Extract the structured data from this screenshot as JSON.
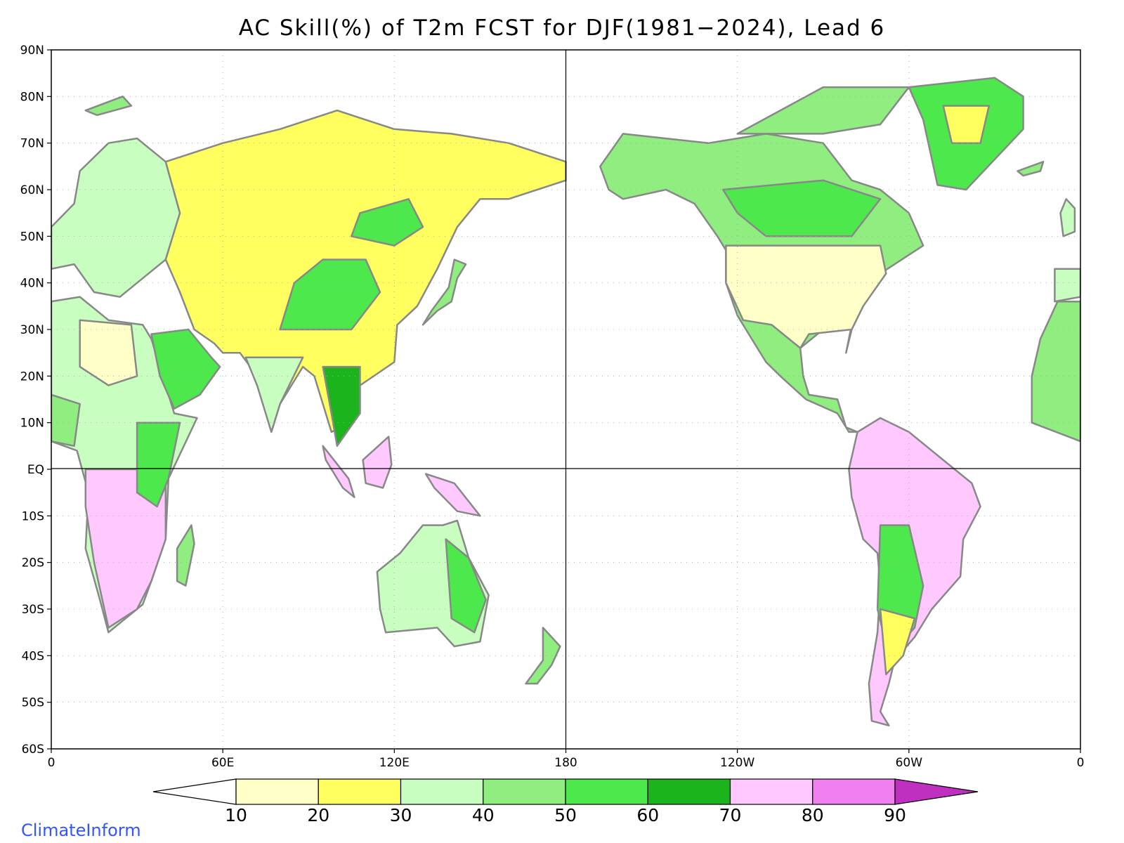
{
  "title": "AC Skill(%) of T2m FCST for DJF(1981−2024), Lead 6",
  "brand": "ClimateInform",
  "lat_labels": [
    "90N",
    "80N",
    "70N",
    "60N",
    "50N",
    "40N",
    "30N",
    "20N",
    "10N",
    "EQ",
    "10S",
    "20S",
    "30S",
    "40S",
    "50S",
    "60S"
  ],
  "lon_labels": [
    "0",
    "60E",
    "120E",
    "180",
    "120W",
    "60W",
    "0"
  ],
  "colorbar": {
    "ticks": [
      "10",
      "20",
      "30",
      "40",
      "50",
      "60",
      "70",
      "80",
      "90"
    ],
    "colors": [
      "#ffffff",
      "#ffffc8",
      "#ffff60",
      "#c8ffc0",
      "#90ee80",
      "#4ce84c",
      "#1cb41c",
      "#ffc8ff",
      "#f080f0",
      "#c030c0"
    ]
  },
  "map": {
    "lat_range": [
      -60,
      90
    ],
    "lon_range": [
      0,
      360
    ],
    "land_outline_color": "#888888",
    "gridline_style": "dotted"
  }
}
